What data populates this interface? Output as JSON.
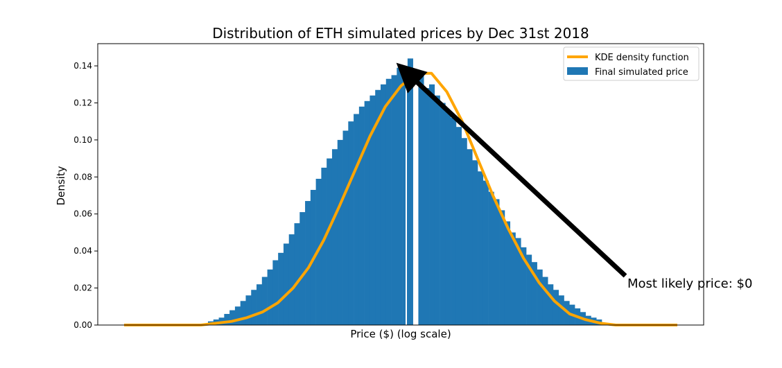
{
  "chart_data": {
    "type": "bar",
    "title": "Distribution of ETH simulated prices by Dec 31st 2018",
    "xlabel": "Price ($) (log scale)",
    "ylabel": "Density",
    "ylim": [
      0,
      0.152
    ],
    "yticks": [
      "0.00",
      "0.02",
      "0.04",
      "0.06",
      "0.08",
      "0.10",
      "0.12",
      "0.14"
    ],
    "ytick_values": [
      0,
      0.02,
      0.04,
      0.06,
      0.08,
      0.1,
      0.12,
      0.14
    ],
    "xticks": [],
    "grid": false,
    "legend_position": "top-right",
    "series": [
      {
        "name": "KDE density function",
        "kind": "line",
        "color": "#FFA500",
        "values": [
          0.0,
          0.0,
          0.0,
          0.0,
          0.0,
          0.0,
          0.001,
          0.002,
          0.004,
          0.007,
          0.012,
          0.02,
          0.031,
          0.046,
          0.064,
          0.083,
          0.102,
          0.118,
          0.129,
          0.136,
          0.136,
          0.126,
          0.11,
          0.09,
          0.07,
          0.052,
          0.036,
          0.023,
          0.013,
          0.006,
          0.003,
          0.001,
          0.0,
          0.0,
          0.0,
          0.0,
          0.0
        ]
      },
      {
        "name": "Final simulated price",
        "kind": "bar",
        "color": "#1F77B4",
        "values": [
          0.002,
          0.003,
          0.004,
          0.006,
          0.008,
          0.01,
          0.013,
          0.016,
          0.019,
          0.022,
          0.026,
          0.03,
          0.035,
          0.039,
          0.044,
          0.049,
          0.055,
          0.061,
          0.067,
          0.073,
          0.079,
          0.085,
          0.09,
          0.095,
          0.1,
          0.105,
          0.11,
          0.114,
          0.118,
          0.121,
          0.124,
          0.127,
          0.13,
          0.133,
          0.135,
          0.139,
          0.136,
          0.144,
          0.0,
          0.137,
          0.128,
          0.13,
          0.124,
          0.12,
          0.116,
          0.112,
          0.107,
          0.101,
          0.095,
          0.089,
          0.083,
          0.078,
          0.072,
          0.068,
          0.062,
          0.056,
          0.05,
          0.047,
          0.042,
          0.038,
          0.034,
          0.03,
          0.026,
          0.022,
          0.019,
          0.016,
          0.013,
          0.011,
          0.009,
          0.007,
          0.005,
          0.004,
          0.003
        ]
      }
    ],
    "annotation": {
      "text": "Most likely price: $0",
      "target_value": 0.136
    }
  }
}
